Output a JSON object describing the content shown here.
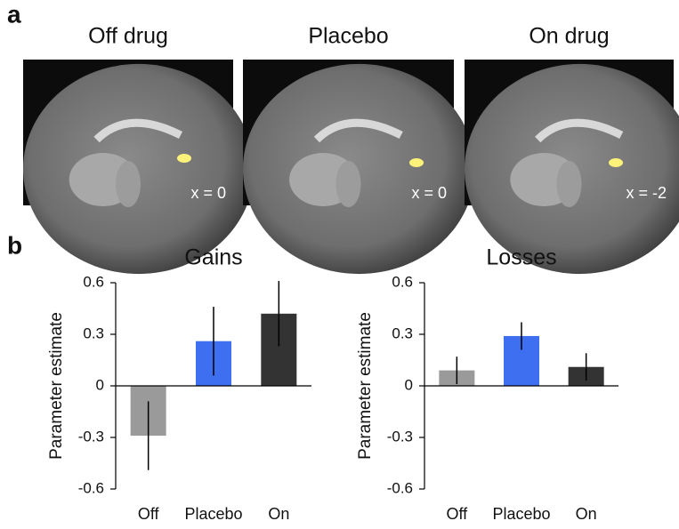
{
  "panel_labels": [
    "a",
    "b"
  ],
  "images": [
    {
      "title": "Off drug",
      "coord": "x = 0"
    },
    {
      "title": "Placebo",
      "coord": "x = 0"
    },
    {
      "title": "On drug",
      "coord": "x = -2"
    }
  ],
  "chart_data": [
    {
      "type": "bar",
      "title": "Gains",
      "y_label": "Parameter estimate",
      "categories": [
        "Off",
        "Placebo",
        "On"
      ],
      "values": [
        -0.29,
        0.26,
        0.42
      ],
      "errors": [
        0.2,
        0.2,
        0.19
      ],
      "colors": [
        "#9a9a9a",
        "#3d6ff0",
        "#333333"
      ],
      "ylim": [
        -0.6,
        0.6
      ],
      "yticks": [
        0.6,
        0.3,
        0,
        -0.3,
        -0.6
      ]
    },
    {
      "type": "bar",
      "title": "Losses",
      "y_label": "Parameter estimate",
      "categories": [
        "Off",
        "Placebo",
        "On"
      ],
      "values": [
        0.09,
        0.29,
        0.11
      ],
      "errors": [
        0.08,
        0.08,
        0.08
      ],
      "colors": [
        "#9a9a9a",
        "#3d6ff0",
        "#333333"
      ],
      "ylim": [
        -0.6,
        0.6
      ],
      "yticks": [
        0.6,
        0.3,
        0,
        -0.3,
        -0.6
      ]
    }
  ]
}
